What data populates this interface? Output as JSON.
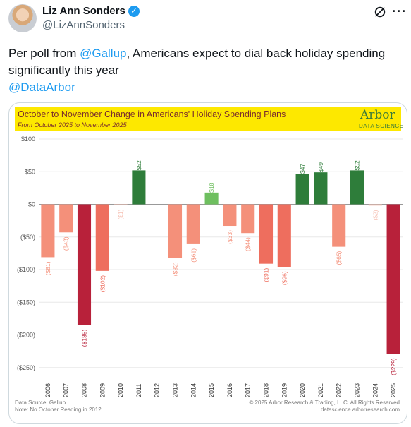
{
  "tweet": {
    "author_name": "Liz Ann Sonders",
    "handle": "@LizAnnSonders",
    "text_before": "Per poll from ",
    "mention_1": "@Gallup",
    "text_after": ", Americans expect to dial back holiday spending significantly this year",
    "mention_2": "@DataArbor"
  },
  "icons": {
    "verified": "verified-badge-icon",
    "grok": "grok-icon",
    "more": "more-icon"
  },
  "colors": {
    "mention": "#1d9bf0",
    "banner": "#fde800"
  },
  "card": {
    "title": "October to November Change in Americans' Holiday Spending Plans",
    "subtitle": "From October 2025 to November 2025",
    "logo_word": "Arbor",
    "logo_sub": "DATA SCIENCE",
    "source_line": "Data Source: Gallup",
    "note_line": "Note: No October Reading in 2012",
    "copyright": "© 2025 Arbor Research & Trading, LLC. All Rights Reserved",
    "site": "datascience.arborresearch.com"
  },
  "chart_data": {
    "type": "bar",
    "categories": [
      "2006",
      "2007",
      "2008",
      "2009",
      "2010",
      "2011",
      "2012",
      "2013",
      "2014",
      "2015",
      "2016",
      "2017",
      "2018",
      "2019",
      "2020",
      "2021",
      "2022",
      "2023",
      "2024",
      "2025"
    ],
    "values": [
      -81,
      -43,
      -185,
      -102,
      -1,
      52,
      null,
      -82,
      -61,
      18,
      -33,
      -44,
      -91,
      -96,
      47,
      49,
      -65,
      52,
      -2,
      -229
    ],
    "labels": [
      "($81)",
      "($43)",
      "($185)",
      "($102)",
      "($1)",
      "$52",
      "",
      "($82)",
      "($61)",
      "$18",
      "($33)",
      "($44)",
      "($91)",
      "($96)",
      "$47",
      "$49",
      "($65)",
      "$52",
      "($2)",
      "($229)"
    ],
    "yticks": [
      "$100",
      "$50",
      "$0",
      "($50)",
      "($100)",
      "($150)",
      "($200)",
      "($250)"
    ],
    "ytick_values": [
      100,
      50,
      0,
      -50,
      -100,
      -150,
      -200,
      -250
    ],
    "ylim": [
      -260,
      100
    ],
    "title": "October to November Change in Americans' Holiday Spending Plans",
    "subtitle": "From October 2025 to November 2025",
    "grid": true
  }
}
